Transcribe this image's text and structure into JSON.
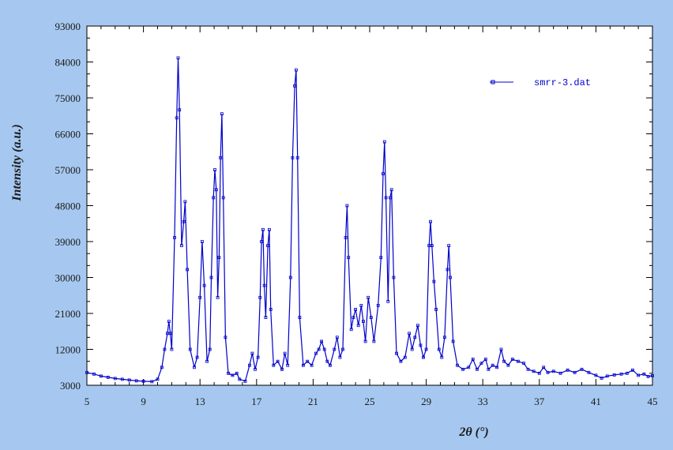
{
  "chart_data": {
    "type": "line",
    "xlabel": "2θ (°)",
    "ylabel": "Intensity (a.u.)",
    "xlim": [
      5,
      45
    ],
    "ylim": [
      3000,
      93000
    ],
    "x_ticks": [
      "5",
      "9",
      "13",
      "17",
      "21",
      "25",
      "29",
      "33",
      "37",
      "41",
      "45"
    ],
    "y_ticks": [
      "3000",
      "12000",
      "21000",
      "30000",
      "39000",
      "48000",
      "57000",
      "66000",
      "75000",
      "84000",
      "93000"
    ],
    "grid": false,
    "legend_position": "top-right",
    "series": [
      {
        "name": "smrr-3.dat",
        "color": "#0000cc",
        "points": [
          [
            5.0,
            6200
          ],
          [
            5.5,
            5800
          ],
          [
            6.0,
            5300
          ],
          [
            6.5,
            5000
          ],
          [
            7.0,
            4700
          ],
          [
            7.5,
            4500
          ],
          [
            8.0,
            4300
          ],
          [
            8.5,
            4100
          ],
          [
            9.0,
            4000
          ],
          [
            9.6,
            3900
          ],
          [
            10.0,
            4500
          ],
          [
            10.3,
            7500
          ],
          [
            10.5,
            12000
          ],
          [
            10.7,
            16000
          ],
          [
            10.8,
            19000
          ],
          [
            10.9,
            16000
          ],
          [
            11.0,
            12000
          ],
          [
            11.2,
            40000
          ],
          [
            11.35,
            70000
          ],
          [
            11.45,
            85000
          ],
          [
            11.55,
            72000
          ],
          [
            11.7,
            38000
          ],
          [
            11.85,
            44000
          ],
          [
            11.95,
            49000
          ],
          [
            12.1,
            32000
          ],
          [
            12.3,
            12000
          ],
          [
            12.6,
            7500
          ],
          [
            12.8,
            10000
          ],
          [
            13.0,
            25000
          ],
          [
            13.15,
            39000
          ],
          [
            13.3,
            28000
          ],
          [
            13.5,
            9000
          ],
          [
            13.7,
            12000
          ],
          [
            13.8,
            30000
          ],
          [
            13.95,
            50000
          ],
          [
            14.05,
            57000
          ],
          [
            14.15,
            52000
          ],
          [
            14.25,
            25000
          ],
          [
            14.35,
            35000
          ],
          [
            14.45,
            60000
          ],
          [
            14.55,
            71000
          ],
          [
            14.65,
            50000
          ],
          [
            14.8,
            15000
          ],
          [
            15.0,
            6000
          ],
          [
            15.3,
            5500
          ],
          [
            15.6,
            6000
          ],
          [
            15.8,
            4500
          ],
          [
            16.2,
            4000
          ],
          [
            16.5,
            8000
          ],
          [
            16.7,
            11000
          ],
          [
            16.9,
            7000
          ],
          [
            17.1,
            10000
          ],
          [
            17.25,
            25000
          ],
          [
            17.35,
            39000
          ],
          [
            17.45,
            42000
          ],
          [
            17.55,
            28000
          ],
          [
            17.65,
            20000
          ],
          [
            17.8,
            38000
          ],
          [
            17.9,
            42000
          ],
          [
            18.0,
            22000
          ],
          [
            18.2,
            8000
          ],
          [
            18.5,
            9000
          ],
          [
            18.8,
            7000
          ],
          [
            19.0,
            11000
          ],
          [
            19.2,
            8000
          ],
          [
            19.4,
            30000
          ],
          [
            19.55,
            60000
          ],
          [
            19.7,
            78000
          ],
          [
            19.8,
            82000
          ],
          [
            19.9,
            60000
          ],
          [
            20.05,
            20000
          ],
          [
            20.3,
            8000
          ],
          [
            20.6,
            9000
          ],
          [
            20.9,
            8000
          ],
          [
            21.2,
            11000
          ],
          [
            21.4,
            12000
          ],
          [
            21.6,
            14000
          ],
          [
            21.8,
            12000
          ],
          [
            22.0,
            9000
          ],
          [
            22.2,
            8000
          ],
          [
            22.5,
            12000
          ],
          [
            22.7,
            15000
          ],
          [
            22.9,
            10000
          ],
          [
            23.1,
            12000
          ],
          [
            23.3,
            40000
          ],
          [
            23.4,
            48000
          ],
          [
            23.5,
            35000
          ],
          [
            23.7,
            17000
          ],
          [
            23.85,
            20000
          ],
          [
            24.0,
            22000
          ],
          [
            24.2,
            18000
          ],
          [
            24.4,
            23000
          ],
          [
            24.55,
            19000
          ],
          [
            24.7,
            14000
          ],
          [
            24.9,
            25000
          ],
          [
            25.1,
            20000
          ],
          [
            25.3,
            14000
          ],
          [
            25.6,
            23000
          ],
          [
            25.8,
            35000
          ],
          [
            25.95,
            56000
          ],
          [
            26.05,
            64000
          ],
          [
            26.15,
            50000
          ],
          [
            26.3,
            24000
          ],
          [
            26.45,
            50000
          ],
          [
            26.55,
            52000
          ],
          [
            26.7,
            30000
          ],
          [
            26.9,
            11000
          ],
          [
            27.2,
            9000
          ],
          [
            27.5,
            10000
          ],
          [
            27.8,
            16000
          ],
          [
            28.0,
            12000
          ],
          [
            28.2,
            15000
          ],
          [
            28.4,
            18000
          ],
          [
            28.6,
            13000
          ],
          [
            28.8,
            10000
          ],
          [
            29.0,
            12000
          ],
          [
            29.2,
            38000
          ],
          [
            29.3,
            44000
          ],
          [
            29.4,
            38000
          ],
          [
            29.55,
            29000
          ],
          [
            29.7,
            22000
          ],
          [
            29.9,
            12000
          ],
          [
            30.1,
            10000
          ],
          [
            30.3,
            15000
          ],
          [
            30.5,
            32000
          ],
          [
            30.6,
            38000
          ],
          [
            30.7,
            30000
          ],
          [
            30.9,
            14000
          ],
          [
            31.2,
            8000
          ],
          [
            31.6,
            7000
          ],
          [
            32.0,
            7500
          ],
          [
            32.3,
            9500
          ],
          [
            32.6,
            7000
          ],
          [
            32.9,
            8500
          ],
          [
            33.2,
            9500
          ],
          [
            33.4,
            7000
          ],
          [
            33.7,
            8000
          ],
          [
            34.0,
            7500
          ],
          [
            34.3,
            12000
          ],
          [
            34.5,
            9000
          ],
          [
            34.8,
            8000
          ],
          [
            35.1,
            9500
          ],
          [
            35.5,
            9000
          ],
          [
            35.9,
            8500
          ],
          [
            36.2,
            7000
          ],
          [
            36.6,
            6500
          ],
          [
            37.0,
            6000
          ],
          [
            37.3,
            7500
          ],
          [
            37.6,
            6200
          ],
          [
            38.0,
            6500
          ],
          [
            38.5,
            6000
          ],
          [
            39.0,
            6800
          ],
          [
            39.5,
            6200
          ],
          [
            40.0,
            7000
          ],
          [
            40.5,
            6200
          ],
          [
            41.0,
            5500
          ],
          [
            41.4,
            4800
          ],
          [
            41.8,
            5300
          ],
          [
            42.3,
            5600
          ],
          [
            42.8,
            5800
          ],
          [
            43.2,
            6000
          ],
          [
            43.6,
            6800
          ],
          [
            44.0,
            5500
          ],
          [
            44.4,
            5800
          ],
          [
            44.7,
            5200
          ],
          [
            45.0,
            5400
          ]
        ]
      }
    ]
  }
}
